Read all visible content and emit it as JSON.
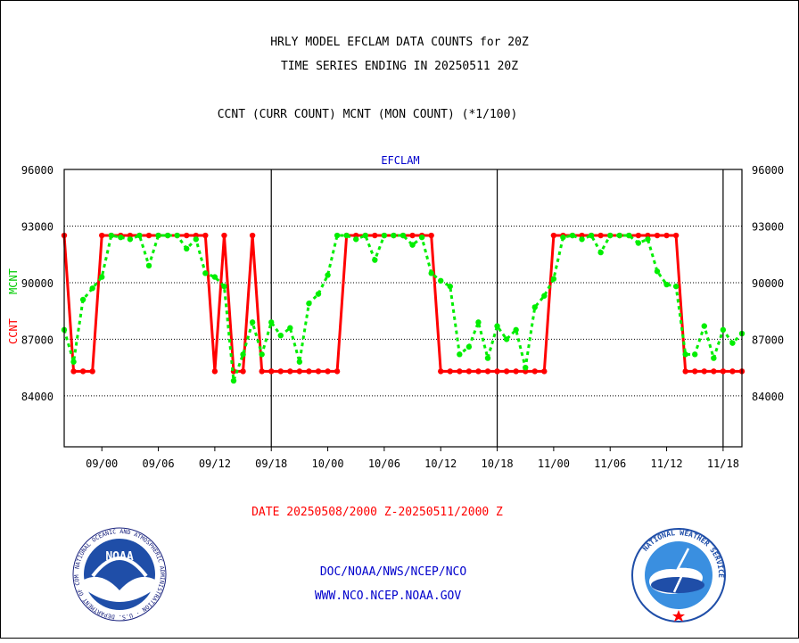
{
  "header": {
    "title_line1": "HRLY MODEL EFCLAM DATA COUNTS for 20Z",
    "title_line2": "TIME SERIES ENDING IN 20250511 20Z",
    "subtitle": "CCNT (CURR COUNT) MCNT (MON COUNT) (*1/100)"
  },
  "footer": {
    "date_range": "DATE 20250508/2000 Z-20250511/2000 Z",
    "org_path": "DOC/NOAA/NWS/NCEP/NCO",
    "website": "WWW.NCO.NCEP.NOAA.GOV",
    "noaa_logo_text": "NOAA",
    "noaa_ring_text": "NATIONAL OCEANIC AND ATMOSPHERIC ADMINISTRATION · U.S. DEPARTMENT OF COMMERCE",
    "nws_ring_text": "NATIONAL WEATHER SERVICE"
  },
  "colors": {
    "ccnt": "#ff0000",
    "mcnt": "#00ee00",
    "panel_title": "#0000cc",
    "footer_red": "#ff0000",
    "footer_blue": "#0000cc"
  },
  "chart_data": {
    "type": "line",
    "title": "EFCLAM",
    "ylabel_left_1": "CCNT",
    "ylabel_left_2": "MCNT",
    "ylim": [
      81300,
      96000
    ],
    "yticks": [
      84000,
      87000,
      90000,
      93000,
      96000
    ],
    "ytick_labels": [
      "84000",
      "87000",
      "90000",
      "93000",
      "96000"
    ],
    "xlim": [
      0,
      72
    ],
    "xticks": [
      4,
      10,
      16,
      22,
      28,
      34,
      40,
      46,
      52,
      58,
      64,
      70
    ],
    "xtick_labels": [
      "09/00",
      "09/06",
      "09/12",
      "09/18",
      "10/00",
      "10/06",
      "10/12",
      "10/18",
      "11/00",
      "11/06",
      "11/12",
      "11/18"
    ],
    "day_boundaries": [
      22,
      46,
      70
    ],
    "grid": "horizontal",
    "series": [
      {
        "name": "CCNT",
        "style": "solid",
        "values": [
          92500,
          85300,
          85300,
          85300,
          92500,
          92500,
          92500,
          92500,
          92500,
          92500,
          92500,
          92500,
          92500,
          92500,
          92500,
          92500,
          85300,
          92500,
          85300,
          85300,
          92500,
          85300,
          85300,
          85300,
          85300,
          85300,
          85300,
          85300,
          85300,
          85300,
          92500,
          92500,
          92500,
          92500,
          92500,
          92500,
          92500,
          92500,
          92500,
          92500,
          85300,
          85300,
          85300,
          85300,
          85300,
          85300,
          85300,
          85300,
          85300,
          85300,
          85300,
          85300,
          92500,
          92500,
          92500,
          92500,
          92500,
          92500,
          92500,
          92500,
          92500,
          92500,
          92500,
          92500,
          92500,
          92500,
          85300,
          85300,
          85300,
          85300,
          85300,
          85300,
          85300
        ]
      },
      {
        "name": "MCNT",
        "style": "dotted",
        "values": [
          87500,
          85800,
          89100,
          89700,
          90300,
          92500,
          92400,
          92300,
          92500,
          90900,
          92500,
          92500,
          92500,
          91800,
          92300,
          90500,
          90300,
          89800,
          84800,
          86200,
          87900,
          86200,
          87900,
          87200,
          87600,
          85800,
          88900,
          89400,
          90400,
          92500,
          92500,
          92300,
          92500,
          91200,
          92500,
          92500,
          92500,
          92000,
          92400,
          90500,
          90100,
          89800,
          86200,
          86600,
          87900,
          86000,
          87700,
          87000,
          87500,
          85500,
          88700,
          89300,
          90200,
          92400,
          92500,
          92300,
          92500,
          91600,
          92500,
          92500,
          92500,
          92100,
          92300,
          90600,
          89900,
          89800,
          86200,
          86200,
          87700,
          86000,
          87500,
          86800,
          87300
        ]
      }
    ]
  }
}
